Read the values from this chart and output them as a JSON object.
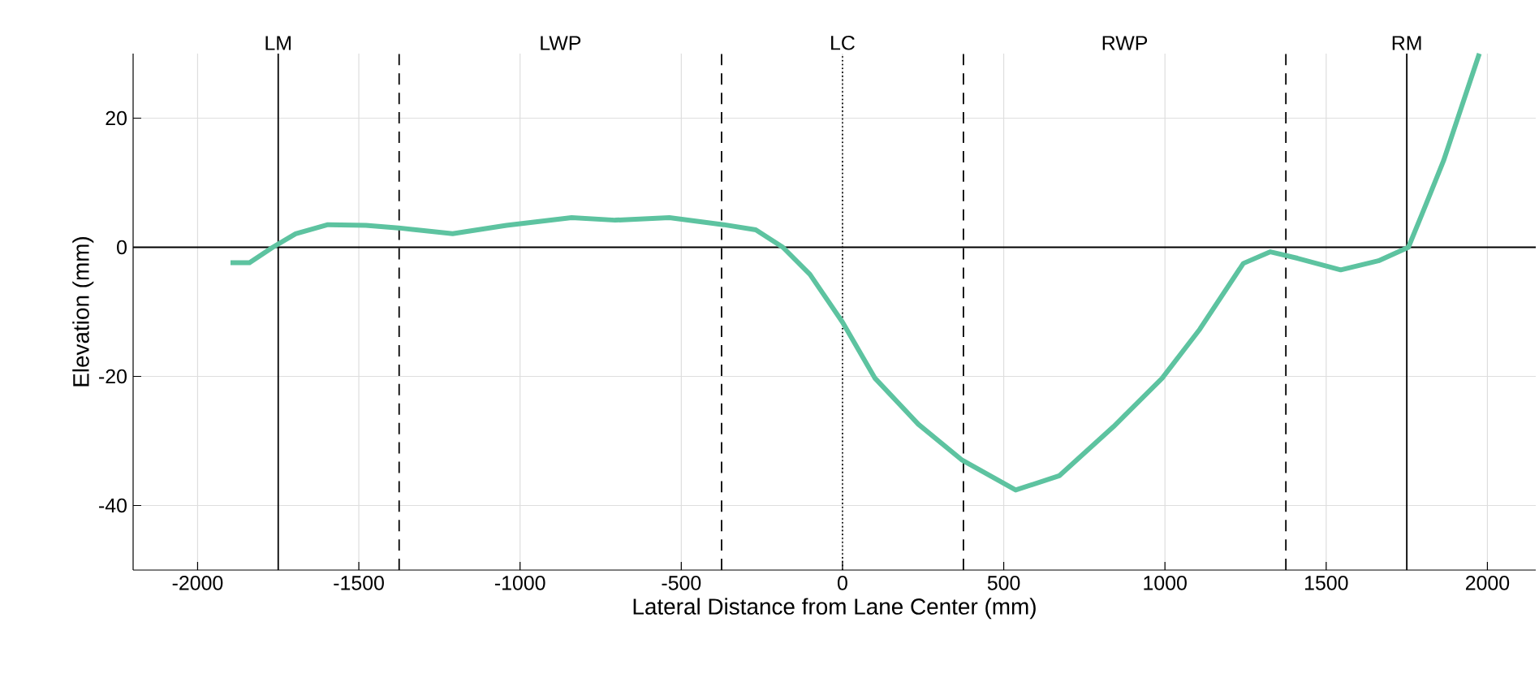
{
  "chart_data": {
    "type": "line",
    "xlabel": "Lateral Distance from Lane Center (mm)",
    "ylabel": "Elevation (mm)",
    "xlim": [
      -2200,
      2150
    ],
    "ylim": [
      -50,
      30
    ],
    "xticks": [
      -2000,
      -1500,
      -1000,
      -500,
      0,
      500,
      1000,
      1500,
      2000
    ],
    "yticks": [
      -40,
      -20,
      0,
      20
    ],
    "annotations": [
      "LWP",
      "RWP"
    ],
    "grid": true,
    "ref_lines": [
      {
        "axis": "y",
        "value": 0,
        "color": "#000000",
        "line_style": "solid"
      },
      {
        "axis": "x",
        "value": -1750,
        "color": "#000000",
        "line_style": "solid",
        "label": "LM"
      },
      {
        "axis": "x",
        "value": -1375,
        "color": "#000000",
        "line_style": "dashed"
      },
      {
        "axis": "x",
        "value": -375,
        "color": "#000000",
        "line_style": "dashed"
      },
      {
        "axis": "x",
        "value": 0,
        "color": "#000000",
        "line_style": "dotted",
        "label": "LC"
      },
      {
        "axis": "x",
        "value": 375,
        "color": "#000000",
        "line_style": "dashed"
      },
      {
        "axis": "x",
        "value": 1375,
        "color": "#000000",
        "line_style": "dashed"
      },
      {
        "axis": "x",
        "value": 1750,
        "color": "#000000",
        "line_style": "solid",
        "label": "RM"
      }
    ],
    "series": [
      {
        "color": "#5dc3a0",
        "x": [
          -1898,
          -1839,
          -1767,
          -1696,
          -1596,
          -1478,
          -1377,
          -1209,
          -1042,
          -840,
          -705,
          -537,
          -369,
          -269,
          -185,
          -101,
          0,
          101,
          235,
          369,
          537,
          672,
          840,
          991,
          1108,
          1243,
          1327,
          1411,
          1545,
          1662,
          1755,
          1797,
          1864,
          1975
        ],
        "values": [
          -2.4,
          -2.4,
          0,
          2.1,
          3.5,
          3.4,
          3.0,
          2.1,
          3.4,
          4.6,
          4.2,
          4.6,
          3.5,
          2.7,
          0,
          -4.2,
          -11.6,
          -20.3,
          -27.4,
          -32.9,
          -37.6,
          -35.4,
          -27.8,
          -20.3,
          -12.7,
          -2.5,
          -0.7,
          -1.7,
          -3.5,
          -2.1,
          0,
          5.1,
          13.4,
          30
        ]
      }
    ]
  }
}
